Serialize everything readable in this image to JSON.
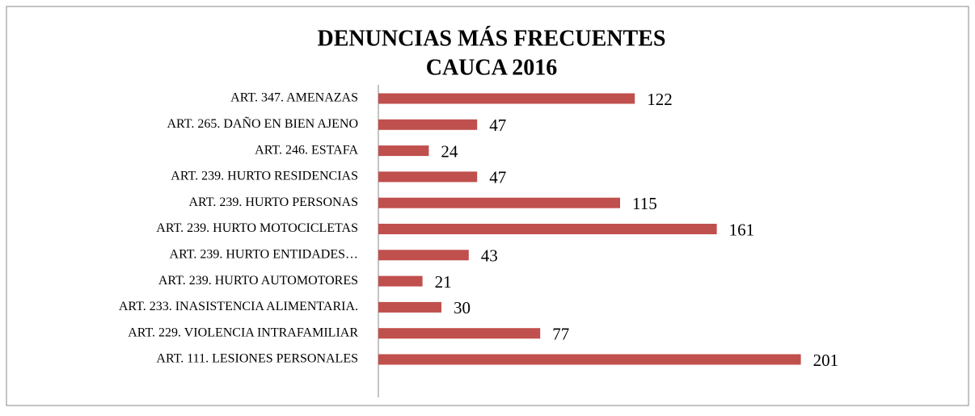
{
  "chart_data": {
    "type": "bar",
    "orientation": "horizontal",
    "title": [
      "DENUNCIAS MÁS FRECUENTES",
      "CAUCA 2016"
    ],
    "categories": [
      "ART. 347. AMENAZAS",
      "ART. 265. DAÑO EN BIEN AJENO",
      "ART. 246. ESTAFA",
      "ART. 239. HURTO RESIDENCIAS",
      "ART. 239. HURTO PERSONAS",
      "ART. 239. HURTO MOTOCICLETAS",
      "ART. 239. HURTO ENTIDADES…",
      "ART. 239. HURTO AUTOMOTORES",
      "ART. 233. INASISTENCIA ALIMENTARIA.",
      "ART. 229. VIOLENCIA INTRAFAMILIAR",
      "ART. 111. LESIONES PERSONALES"
    ],
    "values": [
      122,
      47,
      24,
      47,
      115,
      161,
      43,
      21,
      30,
      77,
      201
    ],
    "color": "#c0504d",
    "xlim": [
      0,
      250
    ]
  }
}
